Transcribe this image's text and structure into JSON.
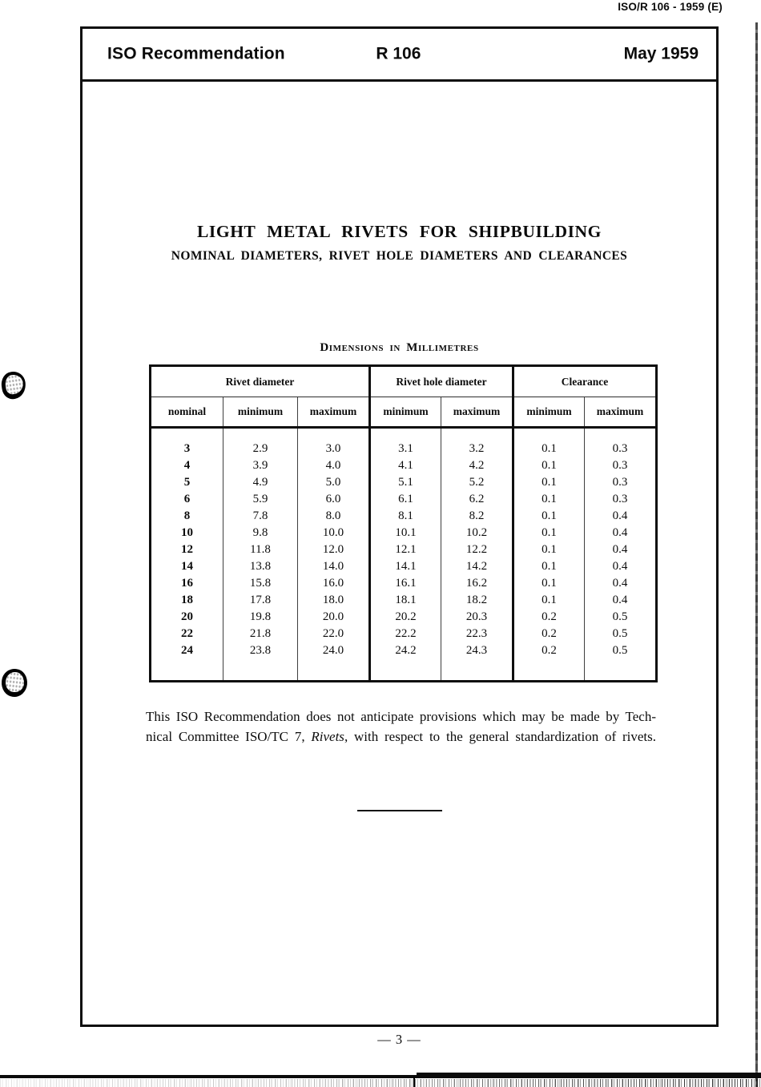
{
  "document": {
    "corner_ref": "ISO/R 106 - 1959 (E)",
    "header": {
      "org": "ISO Recommendation",
      "ref": "R 106",
      "date": "May 1959"
    },
    "title": "LIGHT METAL RIVETS FOR SHIPBUILDING",
    "subtitle": "NOMINAL DIAMETERS, RIVET HOLE DIAMETERS AND CLEARANCES",
    "table_caption": "Dimensions in Millimetres",
    "note": {
      "line1": "This ISO Recommendation does not anticipate provisions which may be made by Tech-",
      "line2_pre": "nical Committee ISO/TC 7, ",
      "line2_italic": "Rivets",
      "line2_post": ", with respect to the general standardization of rivets."
    },
    "page_number": "— 3 —"
  },
  "table": {
    "groups": [
      {
        "label": "Rivet diameter"
      },
      {
        "label": "Rivet hole diameter"
      },
      {
        "label": "Clearance"
      }
    ],
    "columns": [
      "nominal",
      "minimum",
      "maximum",
      "minimum",
      "maximum",
      "minimum",
      "maximum"
    ],
    "rows": [
      [
        "3",
        "2.9",
        "3.0",
        "3.1",
        "3.2",
        "0.1",
        "0.3"
      ],
      [
        "4",
        "3.9",
        "4.0",
        "4.1",
        "4.2",
        "0.1",
        "0.3"
      ],
      [
        "5",
        "4.9",
        "5.0",
        "5.1",
        "5.2",
        "0.1",
        "0.3"
      ],
      [
        "6",
        "5.9",
        "6.0",
        "6.1",
        "6.2",
        "0.1",
        "0.3"
      ],
      [
        "8",
        "7.8",
        "8.0",
        "8.1",
        "8.2",
        "0.1",
        "0.4"
      ],
      [
        "10",
        "9.8",
        "10.0",
        "10.1",
        "10.2",
        "0.1",
        "0.4"
      ],
      [
        "12",
        "11.8",
        "12.0",
        "12.1",
        "12.2",
        "0.1",
        "0.4"
      ],
      [
        "14",
        "13.8",
        "14.0",
        "14.1",
        "14.2",
        "0.1",
        "0.4"
      ],
      [
        "16",
        "15.8",
        "16.0",
        "16.1",
        "16.2",
        "0.1",
        "0.4"
      ],
      [
        "18",
        "17.8",
        "18.0",
        "18.1",
        "18.2",
        "0.1",
        "0.4"
      ],
      [
        "20",
        "19.8",
        "20.0",
        "20.2",
        "20.3",
        "0.2",
        "0.5"
      ],
      [
        "22",
        "21.8",
        "22.0",
        "22.2",
        "22.3",
        "0.2",
        "0.5"
      ],
      [
        "24",
        "23.8",
        "24.0",
        "24.2",
        "24.3",
        "0.2",
        "0.5"
      ]
    ]
  },
  "colors": {
    "ink": "#111111",
    "paper": "#ffffff"
  }
}
